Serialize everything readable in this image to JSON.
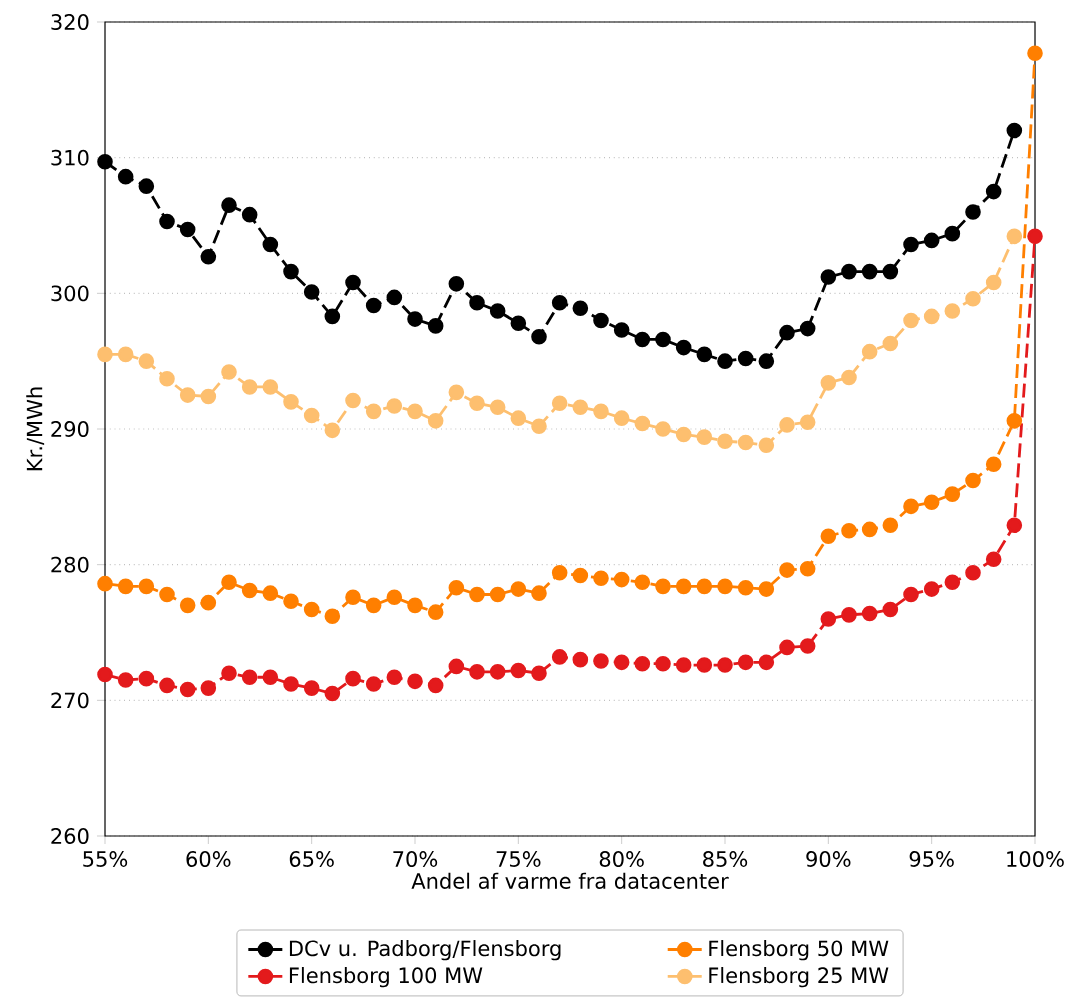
{
  "chart_data": {
    "type": "line",
    "xlabel": "Andel af varme fra datacenter",
    "ylabel": "Kr./MWh",
    "x": [
      55,
      56,
      57,
      58,
      59,
      60,
      61,
      62,
      63,
      64,
      65,
      66,
      67,
      68,
      69,
      70,
      71,
      72,
      73,
      74,
      75,
      76,
      77,
      78,
      79,
      80,
      81,
      82,
      83,
      84,
      85,
      86,
      87,
      88,
      89,
      90,
      91,
      92,
      93,
      94,
      95,
      96,
      97,
      98,
      99,
      100
    ],
    "series": [
      {
        "name": "DCv u. Padborg/Flensborg",
        "color": "#000000",
        "values": [
          309.7,
          308.6,
          307.9,
          305.3,
          304.7,
          302.7,
          306.5,
          305.8,
          303.6,
          301.6,
          300.1,
          298.3,
          300.8,
          299.1,
          299.7,
          298.1,
          297.6,
          300.7,
          299.3,
          298.7,
          297.8,
          296.8,
          299.3,
          298.9,
          298.0,
          297.3,
          296.6,
          296.6,
          296.0,
          295.5,
          295.0,
          295.2,
          295.0,
          297.1,
          297.4,
          301.2,
          301.6,
          301.6,
          301.6,
          303.6,
          303.9,
          304.4,
          306.0,
          307.5,
          312.0,
          null
        ]
      },
      {
        "name": "Flensborg 100 MW",
        "color": "#e31a1c",
        "values": [
          271.9,
          271.5,
          271.6,
          271.1,
          270.8,
          270.9,
          272.0,
          271.7,
          271.7,
          271.2,
          270.9,
          270.5,
          271.6,
          271.2,
          271.7,
          271.4,
          271.1,
          272.5,
          272.1,
          272.1,
          272.2,
          272.0,
          273.2,
          273.0,
          272.9,
          272.8,
          272.7,
          272.7,
          272.6,
          272.6,
          272.6,
          272.8,
          272.8,
          273.9,
          274.0,
          276.0,
          276.3,
          276.4,
          276.7,
          277.8,
          278.2,
          278.7,
          279.4,
          280.4,
          282.9,
          304.2
        ]
      },
      {
        "name": "Flensborg 50 MW",
        "color": "#ff7f00",
        "values": [
          278.6,
          278.4,
          278.4,
          277.8,
          277.0,
          277.2,
          278.7,
          278.1,
          277.9,
          277.3,
          276.7,
          276.2,
          277.6,
          277.0,
          277.6,
          277.0,
          276.5,
          278.3,
          277.8,
          277.8,
          278.2,
          277.9,
          279.4,
          279.2,
          279.0,
          278.9,
          278.7,
          278.4,
          278.4,
          278.4,
          278.4,
          278.3,
          278.2,
          279.6,
          279.7,
          282.1,
          282.5,
          282.6,
          282.9,
          284.3,
          284.6,
          285.2,
          286.2,
          287.4,
          290.6,
          317.7
        ]
      },
      {
        "name": "Flensborg 25 MW",
        "color": "#fdbf6f",
        "values": [
          295.5,
          295.5,
          295.0,
          293.7,
          292.5,
          292.4,
          294.2,
          293.1,
          293.1,
          292.0,
          291.0,
          289.9,
          292.1,
          291.3,
          291.7,
          291.3,
          290.6,
          292.7,
          291.9,
          291.6,
          290.8,
          290.2,
          291.9,
          291.6,
          291.3,
          290.8,
          290.4,
          290.0,
          289.6,
          289.4,
          289.1,
          289.0,
          288.8,
          290.3,
          290.5,
          293.4,
          293.8,
          295.7,
          296.3,
          298.0,
          298.3,
          298.7,
          299.6,
          300.8,
          304.2,
          null
        ]
      }
    ],
    "xlim": [
      55,
      100
    ],
    "xticks": [
      {
        "value": 55,
        "label": "55%"
      },
      {
        "value": 60,
        "label": "60%"
      },
      {
        "value": 65,
        "label": "65%"
      },
      {
        "value": 70,
        "label": "70%"
      },
      {
        "value": 75,
        "label": "75%"
      },
      {
        "value": 80,
        "label": "80%"
      },
      {
        "value": 85,
        "label": "85%"
      },
      {
        "value": 90,
        "label": "90%"
      },
      {
        "value": 95,
        "label": "95%"
      },
      {
        "value": 100,
        "label": "100%"
      }
    ],
    "ylim": [
      260,
      320
    ],
    "yticks": [
      260,
      270,
      280,
      290,
      300,
      310,
      320
    ],
    "grid": "y",
    "legend": "bottom",
    "marker": "circle",
    "line_style": "dashed"
  }
}
